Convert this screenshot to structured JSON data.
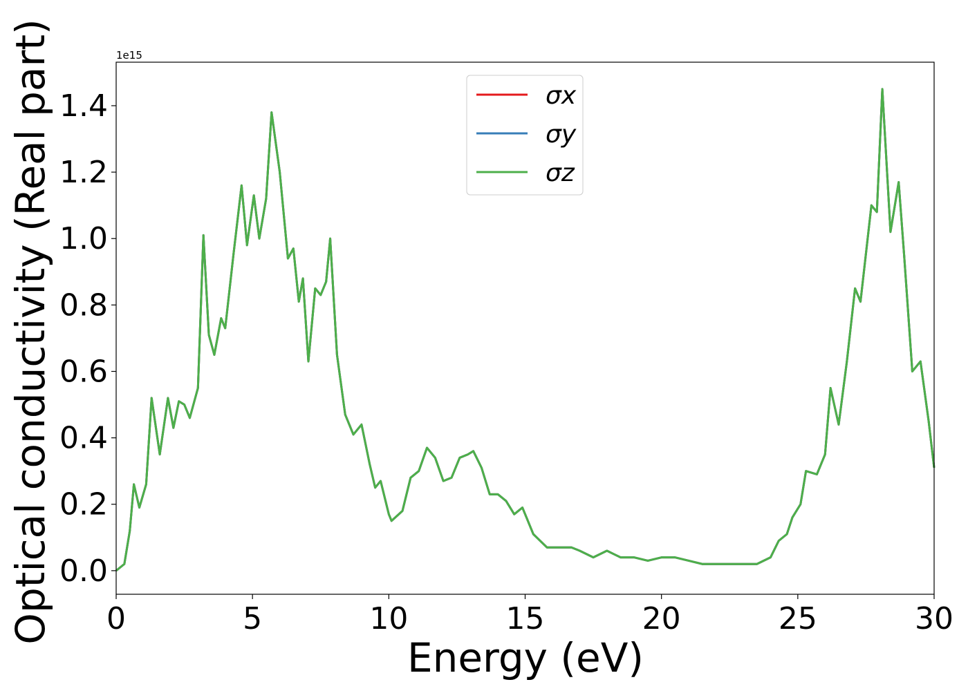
{
  "chart_data": {
    "type": "line",
    "x_label": "Energy (eV)",
    "y_label": "Optical conductivity (Real part)",
    "y_offset_label": "1e15",
    "x": [
      0,
      0.3,
      0.5,
      0.65,
      0.85,
      1.1,
      1.3,
      1.6,
      1.9,
      2.1,
      2.3,
      2.5,
      2.7,
      3.0,
      3.2,
      3.4,
      3.6,
      3.85,
      4.0,
      4.3,
      4.6,
      4.8,
      5.05,
      5.25,
      5.5,
      5.7,
      6.0,
      6.3,
      6.5,
      6.7,
      6.85,
      7.05,
      7.3,
      7.5,
      7.7,
      7.85,
      8.1,
      8.4,
      8.7,
      9.0,
      9.3,
      9.5,
      9.7,
      10.0,
      10.1,
      10.5,
      10.8,
      11.1,
      11.4,
      11.7,
      12.0,
      12.3,
      12.6,
      12.9,
      13.1,
      13.4,
      13.7,
      14.0,
      14.3,
      14.6,
      14.9,
      15.3,
      15.8,
      16.2,
      16.7,
      17.0,
      17.5,
      18.0,
      18.5,
      19.0,
      19.5,
      20.0,
      20.5,
      21.0,
      21.5,
      22.0,
      22.5,
      23.0,
      23.5,
      24.0,
      24.3,
      24.6,
      24.8,
      25.1,
      25.3,
      25.7,
      26.0,
      26.2,
      26.5,
      26.8,
      27.1,
      27.3,
      27.7,
      27.9,
      28.1,
      28.4,
      28.7,
      28.9,
      29.2,
      29.5,
      29.8,
      30.0
    ],
    "series": [
      {
        "name": "σx",
        "color": "#e41a1c",
        "values": [
          0.0,
          0.02,
          0.12,
          0.26,
          0.19,
          0.26,
          0.52,
          0.35,
          0.52,
          0.43,
          0.51,
          0.5,
          0.46,
          0.55,
          1.01,
          0.71,
          0.65,
          0.76,
          0.73,
          0.95,
          1.16,
          0.98,
          1.13,
          1.0,
          1.12,
          1.38,
          1.2,
          0.94,
          0.97,
          0.81,
          0.88,
          0.63,
          0.85,
          0.83,
          0.87,
          1.0,
          0.65,
          0.47,
          0.41,
          0.44,
          0.32,
          0.25,
          0.27,
          0.17,
          0.15,
          0.18,
          0.28,
          0.3,
          0.37,
          0.34,
          0.27,
          0.28,
          0.34,
          0.35,
          0.36,
          0.31,
          0.23,
          0.23,
          0.21,
          0.17,
          0.19,
          0.11,
          0.07,
          0.07,
          0.07,
          0.06,
          0.04,
          0.06,
          0.04,
          0.04,
          0.03,
          0.04,
          0.04,
          0.03,
          0.02,
          0.02,
          0.02,
          0.02,
          0.02,
          0.04,
          0.09,
          0.11,
          0.16,
          0.2,
          0.3,
          0.29,
          0.35,
          0.55,
          0.44,
          0.63,
          0.85,
          0.81,
          1.1,
          1.08,
          1.45,
          1.02,
          1.17,
          0.95,
          0.6,
          0.63,
          0.45,
          0.31
        ]
      },
      {
        "name": "σy",
        "color": "#377eb8",
        "values": [
          0.0,
          0.02,
          0.12,
          0.26,
          0.19,
          0.26,
          0.52,
          0.35,
          0.52,
          0.43,
          0.51,
          0.5,
          0.46,
          0.55,
          1.01,
          0.71,
          0.65,
          0.76,
          0.73,
          0.95,
          1.16,
          0.98,
          1.13,
          1.0,
          1.12,
          1.38,
          1.2,
          0.94,
          0.97,
          0.81,
          0.88,
          0.63,
          0.85,
          0.83,
          0.87,
          1.0,
          0.65,
          0.47,
          0.41,
          0.44,
          0.32,
          0.25,
          0.27,
          0.17,
          0.15,
          0.18,
          0.28,
          0.3,
          0.37,
          0.34,
          0.27,
          0.28,
          0.34,
          0.35,
          0.36,
          0.31,
          0.23,
          0.23,
          0.21,
          0.17,
          0.19,
          0.11,
          0.07,
          0.07,
          0.07,
          0.06,
          0.04,
          0.06,
          0.04,
          0.04,
          0.03,
          0.04,
          0.04,
          0.03,
          0.02,
          0.02,
          0.02,
          0.02,
          0.02,
          0.04,
          0.09,
          0.11,
          0.16,
          0.2,
          0.3,
          0.29,
          0.35,
          0.55,
          0.44,
          0.63,
          0.85,
          0.81,
          1.1,
          1.08,
          1.45,
          1.02,
          1.17,
          0.95,
          0.6,
          0.63,
          0.45,
          0.31
        ]
      },
      {
        "name": "σz",
        "color": "#4daf4a",
        "values": [
          0.0,
          0.02,
          0.12,
          0.26,
          0.19,
          0.26,
          0.52,
          0.35,
          0.52,
          0.43,
          0.51,
          0.5,
          0.46,
          0.55,
          1.01,
          0.71,
          0.65,
          0.76,
          0.73,
          0.95,
          1.16,
          0.98,
          1.13,
          1.0,
          1.12,
          1.38,
          1.2,
          0.94,
          0.97,
          0.81,
          0.88,
          0.63,
          0.85,
          0.83,
          0.87,
          1.0,
          0.65,
          0.47,
          0.41,
          0.44,
          0.32,
          0.25,
          0.27,
          0.17,
          0.15,
          0.18,
          0.28,
          0.3,
          0.37,
          0.34,
          0.27,
          0.28,
          0.34,
          0.35,
          0.36,
          0.31,
          0.23,
          0.23,
          0.21,
          0.17,
          0.19,
          0.11,
          0.07,
          0.07,
          0.07,
          0.06,
          0.04,
          0.06,
          0.04,
          0.04,
          0.03,
          0.04,
          0.04,
          0.03,
          0.02,
          0.02,
          0.02,
          0.02,
          0.02,
          0.04,
          0.09,
          0.11,
          0.16,
          0.2,
          0.3,
          0.29,
          0.35,
          0.55,
          0.44,
          0.63,
          0.85,
          0.81,
          1.1,
          1.08,
          1.45,
          1.02,
          1.17,
          0.95,
          0.6,
          0.63,
          0.45,
          0.31
        ]
      }
    ],
    "xlim": [
      0,
      30
    ],
    "xticks": [
      0,
      5,
      10,
      15,
      20,
      25,
      30
    ],
    "ylim": [
      -0.071,
      1.531
    ],
    "yticks": [
      {
        "value": 0,
        "label": "0.0"
      },
      0.2,
      0.4,
      0.6,
      0.8,
      {
        "value": 1,
        "label": "1.0"
      },
      1.2,
      1.4
    ],
    "legend": "upper center",
    "grid": false
  }
}
